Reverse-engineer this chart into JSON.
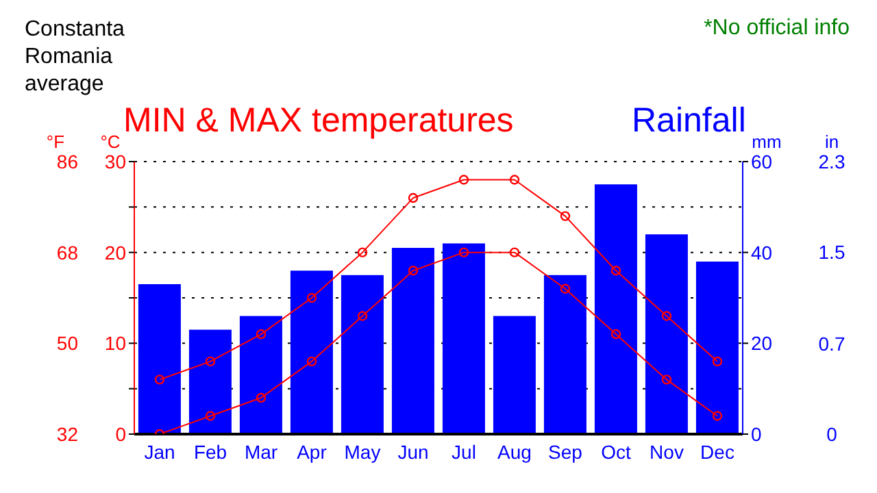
{
  "chart_data": {
    "type": "bar",
    "title": "MIN & MAX temperatures",
    "subtitle": "Rainfall",
    "annotations": [
      "Constanta\nRomania\naverage",
      "*No official info",
      "in",
      "0",
      "0.7",
      "1.5",
      "2.3"
    ],
    "categories": [
      "Jan",
      "Feb",
      "Mar",
      "Apr",
      "May",
      "Jun",
      "Jul",
      "Aug",
      "Sep",
      "Oct",
      "Nov",
      "Dec"
    ],
    "series": [
      {
        "axis": "y2",
        "color": "#0000ff",
        "values": [
          33,
          23,
          26,
          36,
          35,
          41,
          42,
          26,
          35,
          55,
          44,
          38
        ]
      },
      {
        "type": "line",
        "color": "#ff0000",
        "marker": "circle",
        "values": [
          6,
          8,
          11,
          15,
          20,
          26,
          28,
          28,
          24,
          18,
          13,
          8
        ]
      },
      {
        "type": "line",
        "color": "#ff0000",
        "marker": "circle",
        "values": [
          0,
          2,
          4,
          8,
          13,
          18,
          20,
          20,
          16,
          11,
          6,
          2
        ]
      }
    ],
    "ylabel": "°C",
    "ylim": [
      0,
      30
    ],
    "yticks": [
      0,
      {
        "value": 5,
        "label": null
      },
      10,
      {
        "value": 15,
        "label": null
      },
      20,
      {
        "value": 25,
        "label": null
      },
      30
    ],
    "y3label": "°F",
    "y3lim": [
      32,
      86
    ],
    "y3ticks": [
      32,
      50,
      68,
      86
    ],
    "y2label": "mm",
    "y2lim": [
      0,
      60
    ],
    "y2ticks": [
      0,
      20,
      40,
      60
    ],
    "grid": "y",
    "legend": false
  }
}
